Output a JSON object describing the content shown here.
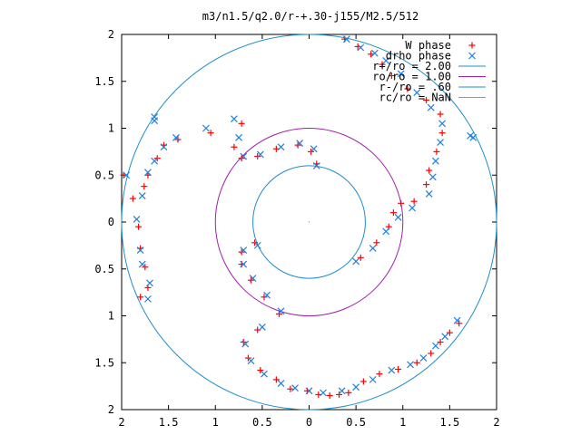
{
  "chart_data": {
    "type": "scatter",
    "title": "m3/n1.5/q2.0/r-+.30-j155/M2.5/512",
    "xlim": [
      -2,
      2
    ],
    "ylim": [
      -2,
      2
    ],
    "x_tick_values": [
      -2,
      -1.5,
      -1,
      -0.5,
      0,
      0.5,
      1,
      1.5,
      2
    ],
    "x_tick_labels": [
      "2",
      "1.5",
      "1",
      "0.5",
      "0",
      "0.5",
      "1",
      "1.5",
      "2"
    ],
    "y_tick_values": [
      2,
      1.5,
      1,
      0.5,
      0,
      -0.5,
      -1,
      -1.5,
      -2
    ],
    "y_tick_labels": [
      "2",
      "1.5",
      "1",
      "0.5",
      "0",
      "0.5",
      "1",
      "1.5",
      "2"
    ],
    "grid": false,
    "legend_position": "top-right",
    "legend": [
      {
        "label": "W phase",
        "marker": "plus",
        "color": "#ff0000"
      },
      {
        "label": "drho phase",
        "marker": "cross",
        "color": "#2080e0"
      },
      {
        "label": "r+/ro = 2.00",
        "marker": "line",
        "color": "#1f8fc8"
      },
      {
        "label": "ro/ro = 1.00",
        "marker": "line",
        "color": "#a020a8"
      },
      {
        "label": "r-/ro = .60",
        "marker": "line",
        "color": "#1f8fc8"
      },
      {
        "label": "rc/ro = NaN",
        "marker": "line",
        "color": "#30c0d8"
      }
    ],
    "circles": [
      {
        "name": "r+/ro",
        "radius": 2.0,
        "color": "#1f8fc8"
      },
      {
        "name": "ro/ro",
        "radius": 1.0,
        "color": "#a020a8"
      },
      {
        "name": "r-/ro",
        "radius": 0.6,
        "color": "#1f8fc8"
      }
    ],
    "series": [
      {
        "name": "W phase",
        "color": "#ff0000",
        "points": [
          [
            0.38,
            1.95
          ],
          [
            0.52,
            1.87
          ],
          [
            0.66,
            1.79
          ],
          [
            0.78,
            1.68
          ],
          [
            0.88,
            1.56
          ],
          [
            1.05,
            1.42
          ],
          [
            1.25,
            1.3
          ],
          [
            1.4,
            1.15
          ],
          [
            1.42,
            0.95
          ],
          [
            1.36,
            0.75
          ],
          [
            1.28,
            0.55
          ],
          [
            1.25,
            0.4
          ],
          [
            1.12,
            0.22
          ],
          [
            0.98,
            0.2
          ],
          [
            0.9,
            0.1
          ],
          [
            0.85,
            -0.05
          ],
          [
            0.72,
            -0.22
          ],
          [
            0.55,
            -0.38
          ],
          [
            1.6,
            -1.08
          ],
          [
            1.5,
            -1.18
          ],
          [
            1.4,
            -1.28
          ],
          [
            1.3,
            -1.4
          ],
          [
            1.15,
            -1.5
          ],
          [
            0.95,
            -1.57
          ],
          [
            0.75,
            -1.62
          ],
          [
            0.58,
            -1.7
          ],
          [
            0.42,
            -1.82
          ],
          [
            0.32,
            -1.84
          ],
          [
            0.22,
            -1.85
          ],
          [
            0.1,
            -1.84
          ],
          [
            -0.02,
            -1.8
          ],
          [
            -0.2,
            -1.78
          ],
          [
            -0.35,
            -1.68
          ],
          [
            -0.52,
            -1.58
          ],
          [
            -0.65,
            -1.45
          ],
          [
            -0.7,
            -1.28
          ],
          [
            -0.55,
            -1.15
          ],
          [
            -0.32,
            -0.98
          ],
          [
            -0.48,
            -0.8
          ],
          [
            -0.62,
            -0.62
          ],
          [
            -0.72,
            -0.45
          ],
          [
            -0.72,
            -0.32
          ],
          [
            -0.58,
            -0.22
          ],
          [
            -1.8,
            -0.8
          ],
          [
            -1.72,
            -0.7
          ],
          [
            -1.75,
            -0.48
          ],
          [
            -1.8,
            -0.28
          ],
          [
            -1.82,
            -0.05
          ],
          [
            -1.88,
            0.25
          ],
          [
            -1.76,
            0.38
          ],
          [
            -1.72,
            0.5
          ],
          [
            -1.98,
            0.5
          ],
          [
            -1.62,
            0.68
          ],
          [
            -1.55,
            0.82
          ],
          [
            -1.4,
            0.88
          ],
          [
            -1.05,
            0.95
          ],
          [
            -0.72,
            1.05
          ],
          [
            -0.8,
            0.8
          ],
          [
            -0.72,
            0.68
          ],
          [
            -0.55,
            0.7
          ],
          [
            -0.35,
            0.78
          ],
          [
            -0.12,
            0.82
          ],
          [
            0.02,
            0.75
          ],
          [
            0.08,
            0.62
          ]
        ]
      },
      {
        "name": "drho phase",
        "color": "#2080e0",
        "points": [
          [
            0.4,
            1.95
          ],
          [
            0.55,
            1.86
          ],
          [
            0.7,
            1.8
          ],
          [
            0.82,
            1.72
          ],
          [
            0.98,
            1.58
          ],
          [
            1.15,
            1.38
          ],
          [
            1.3,
            1.22
          ],
          [
            1.42,
            1.05
          ],
          [
            1.4,
            0.85
          ],
          [
            1.35,
            0.65
          ],
          [
            1.32,
            0.48
          ],
          [
            1.28,
            0.3
          ],
          [
            1.1,
            0.15
          ],
          [
            0.95,
            0.05
          ],
          [
            0.82,
            -0.1
          ],
          [
            0.68,
            -0.28
          ],
          [
            0.5,
            -0.42
          ],
          [
            1.58,
            -1.05
          ],
          [
            1.45,
            -1.22
          ],
          [
            1.35,
            -1.32
          ],
          [
            1.22,
            -1.45
          ],
          [
            1.08,
            -1.52
          ],
          [
            0.88,
            -1.58
          ],
          [
            0.68,
            -1.68
          ],
          [
            0.5,
            -1.76
          ],
          [
            0.35,
            -1.8
          ],
          [
            0.15,
            -1.82
          ],
          [
            0.0,
            -1.8
          ],
          [
            -0.15,
            -1.77
          ],
          [
            -0.3,
            -1.72
          ],
          [
            -0.48,
            -1.62
          ],
          [
            -0.62,
            -1.48
          ],
          [
            -0.68,
            -1.3
          ],
          [
            -0.5,
            -1.12
          ],
          [
            -0.3,
            -0.95
          ],
          [
            -0.45,
            -0.78
          ],
          [
            -0.6,
            -0.6
          ],
          [
            -0.7,
            -0.45
          ],
          [
            -0.7,
            -0.3
          ],
          [
            -0.55,
            -0.25
          ],
          [
            -1.72,
            -0.82
          ],
          [
            -1.7,
            -0.65
          ],
          [
            -1.78,
            -0.45
          ],
          [
            -1.8,
            -0.3
          ],
          [
            -1.84,
            0.03
          ],
          [
            -1.78,
            0.28
          ],
          [
            -1.72,
            0.53
          ],
          [
            -1.95,
            0.5
          ],
          [
            -1.65,
            0.65
          ],
          [
            -1.55,
            0.8
          ],
          [
            -1.42,
            0.9
          ],
          [
            -1.1,
            1.0
          ],
          [
            -0.8,
            1.1
          ],
          [
            -0.75,
            0.9
          ],
          [
            -0.7,
            0.7
          ],
          [
            -0.52,
            0.72
          ],
          [
            -0.3,
            0.8
          ],
          [
            -0.1,
            0.84
          ],
          [
            0.05,
            0.78
          ],
          [
            0.08,
            0.6
          ],
          [
            -1.65,
            1.08
          ],
          [
            -1.65,
            1.12
          ],
          [
            1.72,
            0.92
          ],
          [
            1.75,
            0.9
          ]
        ]
      }
    ]
  }
}
